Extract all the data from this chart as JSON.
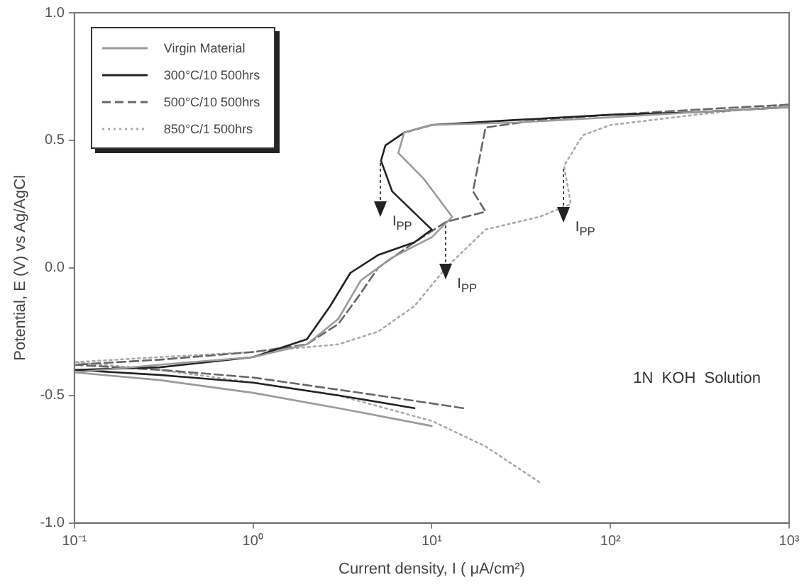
{
  "chart_data": {
    "type": "line",
    "xlabel": "Current density, I ( μA/cm²)",
    "ylabel": "Potential, E (V) vs Ag/AgCl",
    "log": "x",
    "xlim": [
      0.1,
      1000
    ],
    "ylim": [
      -1.0,
      1.0
    ],
    "xticks": [
      {
        "value": 0.1,
        "label": "10⁻¹"
      },
      {
        "value": 1,
        "label": "10⁰"
      },
      {
        "value": 10,
        "label": "10¹"
      },
      {
        "value": 100,
        "label": "10²"
      },
      {
        "value": 1000,
        "label": "10³"
      }
    ],
    "yticks": [
      {
        "value": -1.0,
        "label": "-1.0"
      },
      {
        "value": -0.5,
        "label": "-0.5"
      },
      {
        "value": 0,
        "label": "0.0"
      },
      {
        "value": 0.5,
        "label": "0.5"
      },
      {
        "value": 1.0,
        "label": "1.0"
      }
    ],
    "grid": false,
    "legend": "top left",
    "marker": "none",
    "series": [
      {
        "name": "Virgin Material",
        "color": "#9a9a9a",
        "line_style": "solid",
        "x": [
          10,
          3,
          1,
          0.3,
          0.1,
          0.3,
          1,
          2,
          3,
          4,
          6,
          10,
          13,
          9,
          6.5,
          7,
          10,
          30,
          100,
          300,
          1000
        ],
        "values": [
          -0.62,
          -0.55,
          -0.49,
          -0.44,
          -0.41,
          -0.38,
          -0.35,
          -0.3,
          -0.2,
          -0.05,
          0.04,
          0.12,
          0.2,
          0.35,
          0.45,
          0.53,
          0.56,
          0.57,
          0.59,
          0.61,
          0.63
        ]
      },
      {
        "name": "300°C/10 500hrs",
        "color": "#222222",
        "line_style": "solid",
        "x": [
          8,
          3,
          1,
          0.3,
          0.1,
          0.3,
          1,
          2,
          2.7,
          3.5,
          5,
          8,
          10,
          6,
          5.2,
          5.5,
          7,
          10,
          30,
          100,
          300,
          1000
        ],
        "values": [
          -0.55,
          -0.5,
          -0.45,
          -0.42,
          -0.4,
          -0.39,
          -0.35,
          -0.28,
          -0.15,
          -0.02,
          0.05,
          0.1,
          0.15,
          0.3,
          0.42,
          0.48,
          0.53,
          0.56,
          0.58,
          0.6,
          0.61,
          0.63
        ]
      },
      {
        "name": "500°C/10 500hrs",
        "color": "#666666",
        "line_style": "dashed",
        "x": [
          15,
          5,
          1,
          0.3,
          0.1,
          0.3,
          1,
          2,
          3,
          4,
          5,
          8,
          12,
          20,
          17,
          20,
          40,
          100,
          300,
          1000
        ],
        "values": [
          -0.55,
          -0.5,
          -0.43,
          -0.4,
          -0.38,
          -0.36,
          -0.33,
          -0.3,
          -0.22,
          -0.1,
          0.0,
          0.1,
          0.18,
          0.22,
          0.3,
          0.55,
          0.58,
          0.6,
          0.62,
          0.64
        ]
      },
      {
        "name": "850°C/1 500hrs",
        "color": "#aaaaaa",
        "line_style": "dotted",
        "x": [
          40,
          20,
          10,
          3,
          1,
          0.3,
          0.1,
          0.3,
          1,
          3,
          5,
          8,
          12,
          20,
          40,
          60,
          55,
          70,
          100,
          300,
          1000
        ],
        "values": [
          -0.84,
          -0.7,
          -0.6,
          -0.5,
          -0.45,
          -0.4,
          -0.37,
          -0.35,
          -0.33,
          -0.3,
          -0.25,
          -0.15,
          0.0,
          0.15,
          0.2,
          0.25,
          0.4,
          0.52,
          0.56,
          0.6,
          0.64
        ]
      }
    ],
    "annotations": [
      {
        "text": "I$_{PP}$",
        "x": 5.2,
        "y": 0.42
      },
      {
        "text": "I$_{PP}$",
        "x": 12,
        "y": 0.18
      },
      {
        "text": "I$_{PP}$",
        "x": 55,
        "y": 0.4
      },
      "1N  KOH  Solution"
    ]
  }
}
